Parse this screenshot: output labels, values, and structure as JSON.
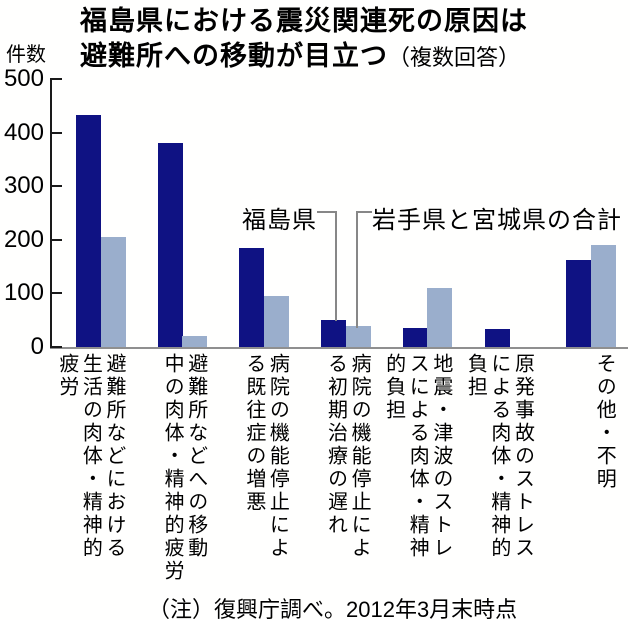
{
  "title": {
    "line1": "福島県における震災関連死の原因は",
    "line2": "避難所への移動が目立つ",
    "suffix": "（複数回答）"
  },
  "y_axis": {
    "unit_label": "件数",
    "ticks": [
      500,
      400,
      300,
      200,
      100,
      0
    ]
  },
  "legend": {
    "series1": "福島県",
    "series2": "岩手県と宮城県の合計"
  },
  "note": "（注）復興庁調べ。2012年3月末時点",
  "colors": {
    "fukushima": "#0f1283",
    "iwate_miyagi": "#9aaecc",
    "axis": "#1a1a1a",
    "baseline": "#8f8f8f",
    "leader": "#878787"
  },
  "chart_data": {
    "type": "bar",
    "title": "福島県における震災関連死の原因は避難所への移動が目立つ（複数回答）",
    "ylabel": "件数",
    "ylim": [
      0,
      500
    ],
    "grid": false,
    "legend_position": "annotated-with-leader-lines",
    "categories": [
      "避難所などにおける生活の肉体・精神的疲労",
      "避難所などへの移動中の肉体・精神的疲労",
      "病院の機能停止による既往症の増悪",
      "病院の機能停止による初期治療の遅れ",
      "地震・津波のストレスによる肉体・精神的負担",
      "原発事故のストレスによる肉体・精神的負担",
      "その他・不明"
    ],
    "categories_display": [
      "避難所などにおける\n生活の肉体・精神的\n疲労",
      "避難所などへの移動\n中の肉体・精神的疲労",
      "病院の機能停止によ\nる既往症の増悪",
      "病院の機能停止によ\nる初期治療の遅れ",
      "地震・津波のストレ\nスによる肉体・精神\n的負担",
      "原発事故のストレス\nによる肉体・精神的\n負担",
      "その他・不明"
    ],
    "series": [
      {
        "name": "福島県",
        "color": "#0f1283",
        "values": [
          433,
          380,
          185,
          50,
          36,
          34,
          162
        ]
      },
      {
        "name": "岩手県と宮城県の合計",
        "color": "#9aaecc",
        "values": [
          205,
          21,
          95,
          40,
          110,
          0,
          190
        ]
      }
    ]
  }
}
